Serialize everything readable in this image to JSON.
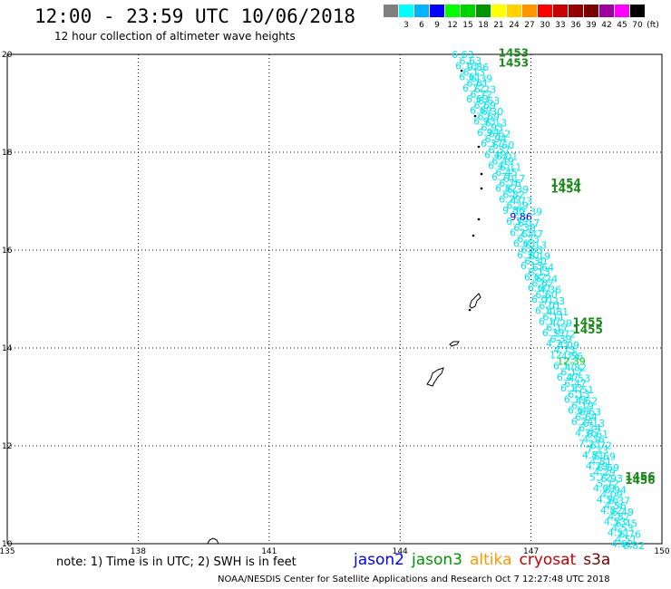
{
  "header": {
    "title": "12:00 - 23:59 UTC 10/06/2018",
    "subtitle": "12 hour collection of altimeter wave heights"
  },
  "legend": {
    "unit": "(ft)",
    "levels": [
      {
        "label": "",
        "color": "#808080"
      },
      {
        "label": "3",
        "color": "#00ffff"
      },
      {
        "label": "6",
        "color": "#00b4ff"
      },
      {
        "label": "9",
        "color": "#0000ff"
      },
      {
        "label": "12",
        "color": "#00ff00"
      },
      {
        "label": "15",
        "color": "#00d200"
      },
      {
        "label": "18",
        "color": "#009600"
      },
      {
        "label": "21",
        "color": "#ffff00"
      },
      {
        "label": "24",
        "color": "#ffd200"
      },
      {
        "label": "27",
        "color": "#ff9600"
      },
      {
        "label": "30",
        "color": "#ff0000"
      },
      {
        "label": "33",
        "color": "#c80000"
      },
      {
        "label": "36",
        "color": "#960000"
      },
      {
        "label": "39",
        "color": "#780000"
      },
      {
        "label": "42",
        "color": "#a000a0"
      },
      {
        "label": "45",
        "color": "#ff00ff"
      },
      {
        "label": "70",
        "color": "#000000"
      }
    ]
  },
  "map": {
    "lon_range": [
      135,
      150
    ],
    "lat_range": [
      10,
      20
    ],
    "lon_ticks": [
      "135",
      "138",
      "141",
      "144",
      "147",
      "150"
    ],
    "lat_ticks": [
      "20",
      "18",
      "16",
      "14",
      "12",
      "10"
    ],
    "grid": true,
    "track_color": "#00e5ee",
    "track_start": [
      145.35,
      20.0
    ],
    "track_end": [
      149.0,
      10.0
    ],
    "pass_labels": [
      {
        "text": "1453",
        "lon": 146.6,
        "lat": 19.95
      },
      {
        "text": "1453",
        "lon": 146.6,
        "lat": 19.75
      },
      {
        "text": "1454",
        "lon": 147.8,
        "lat": 17.3
      },
      {
        "text": "1454",
        "lon": 147.8,
        "lat": 17.18
      },
      {
        "text": "1455",
        "lon": 148.3,
        "lat": 14.45
      },
      {
        "text": "1455",
        "lon": 148.3,
        "lat": 14.3
      },
      {
        "text": "1456",
        "lon": 149.5,
        "lat": 11.3
      },
      {
        "text": "1456",
        "lon": 149.5,
        "lat": 11.22
      }
    ],
    "swh_values": [
      "6.63",
      "6.13",
      "6.61",
      "6.72",
      "6.69",
      "6.69",
      "6.93",
      "6.94",
      "6.37",
      "6.49",
      "6.45",
      "6.76",
      "6.82",
      "6.29",
      "9.86",
      "6.39",
      "6.23",
      "6.63",
      "6.30",
      "6.13",
      "6.62",
      "6.60",
      "6.01",
      "6.11",
      "6.17",
      "6.39",
      "4.73",
      "12.39",
      "6.17",
      "6.47",
      "6.13",
      "6.19",
      "6.64",
      "6.24",
      "4.36",
      "7.23",
      "4.81",
      "4.29",
      "5.72",
      "4.09",
      "4.56",
      "4.82",
      "4.53",
      "4.51",
      "4.62"
    ],
    "highlight_values": [
      {
        "text": "9.86",
        "color": "#0000ff"
      },
      {
        "text": "12.39",
        "color": "#00d200"
      }
    ]
  },
  "footer": {
    "note": "note: 1) Time is in UTC; 2) SWH is in feet",
    "satellites": [
      {
        "name": "jason2",
        "color": "#0000ff"
      },
      {
        "name": "jason3",
        "color": "#009600"
      },
      {
        "name": "altika",
        "color": "#ff9600"
      },
      {
        "name": "cryosat",
        "color": "#c80000"
      },
      {
        "name": "s3a",
        "color": "#780000"
      }
    ],
    "credit": "NOAA/NESDIS Center for Satellite Applications and Research   Oct  7 12:27:48 UTC 2018"
  }
}
